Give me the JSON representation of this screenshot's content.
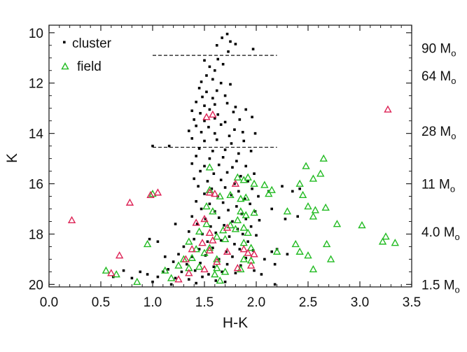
{
  "chart_data": {
    "type": "scatter",
    "title": "",
    "xlabel": "H-K",
    "ylabel": "K",
    "xlim": [
      0.0,
      3.5
    ],
    "ylim": [
      20,
      10
    ],
    "y_inverted": true,
    "xticks": [
      "0.0",
      "0.5",
      "1.0",
      "1.5",
      "2.0",
      "2.5",
      "3.0",
      "3.5"
    ],
    "yticks": [
      "10",
      "12",
      "14",
      "16",
      "18",
      "20"
    ],
    "legend": {
      "position": "top-left",
      "entries": [
        {
          "label": "cluster",
          "marker": "square-dot"
        },
        {
          "label": "field",
          "marker": "triangle"
        }
      ]
    },
    "mass_labels": [
      {
        "K": 10.6,
        "value": "90",
        "unit_main": "M",
        "unit_sub": "o"
      },
      {
        "K": 11.7,
        "value": "64",
        "unit_main": "M",
        "unit_sub": "o"
      },
      {
        "K": 13.9,
        "value": "28",
        "unit_main": "M",
        "unit_sub": "o"
      },
      {
        "K": 16.0,
        "value": "11",
        "unit_main": "M",
        "unit_sub": "o"
      },
      {
        "K": 17.9,
        "value": "4.0",
        "unit_main": "M",
        "unit_sub": "o"
      },
      {
        "K": 20.0,
        "value": "1.5",
        "unit_main": "M",
        "unit_sub": "o"
      }
    ],
    "reference_lines": [
      {
        "K": 10.9,
        "x_range": [
          1.0,
          2.2
        ],
        "style": "dashed"
      },
      {
        "K": 14.55,
        "x_range": [
          1.0,
          2.2
        ],
        "style": "dashed"
      }
    ],
    "colors": {
      "cluster": "#000000",
      "field_green": "#22bb22",
      "field_red": "#dd2255"
    },
    "series": [
      {
        "name": "cluster",
        "marker": "square-dot",
        "points": [
          [
            1.72,
            10.05
          ],
          [
            1.67,
            10.2
          ],
          [
            1.75,
            10.35
          ],
          [
            1.62,
            10.5
          ],
          [
            1.8,
            10.45
          ],
          [
            1.73,
            10.75
          ],
          [
            1.97,
            10.65
          ],
          [
            1.5,
            11.1
          ],
          [
            1.63,
            11.05
          ],
          [
            1.55,
            11.35
          ],
          [
            1.68,
            11.25
          ],
          [
            1.6,
            11.5
          ],
          [
            1.52,
            11.7
          ],
          [
            1.47,
            11.95
          ],
          [
            1.58,
            11.85
          ],
          [
            1.66,
            12.0
          ],
          [
            1.75,
            12.05
          ],
          [
            1.45,
            12.2
          ],
          [
            1.52,
            12.35
          ],
          [
            1.62,
            12.3
          ],
          [
            1.48,
            12.55
          ],
          [
            1.58,
            12.6
          ],
          [
            1.7,
            12.5
          ],
          [
            1.42,
            12.75
          ],
          [
            1.5,
            12.9
          ],
          [
            1.6,
            12.85
          ],
          [
            1.72,
            12.8
          ],
          [
            1.8,
            12.95
          ],
          [
            1.38,
            13.1
          ],
          [
            1.46,
            13.2
          ],
          [
            1.55,
            13.05
          ],
          [
            1.63,
            13.25
          ],
          [
            1.78,
            13.15
          ],
          [
            1.9,
            13.05
          ],
          [
            1.4,
            13.45
          ],
          [
            1.5,
            13.5
          ],
          [
            1.6,
            13.4
          ],
          [
            1.7,
            13.55
          ],
          [
            1.84,
            13.45
          ],
          [
            1.96,
            13.35
          ],
          [
            1.42,
            13.7
          ],
          [
            1.54,
            13.75
          ],
          [
            1.66,
            13.65
          ],
          [
            1.79,
            13.85
          ],
          [
            1.35,
            13.9
          ],
          [
            1.47,
            13.95
          ],
          [
            1.6,
            14.0
          ],
          [
            1.74,
            14.1
          ],
          [
            1.87,
            13.95
          ],
          [
            1.99,
            14.0
          ],
          [
            1.38,
            14.2
          ],
          [
            1.5,
            14.3
          ],
          [
            1.62,
            14.25
          ],
          [
            1.76,
            14.4
          ],
          [
            1.88,
            14.3
          ],
          [
            1.45,
            14.6
          ],
          [
            1.58,
            14.7
          ],
          [
            1.7,
            14.65
          ],
          [
            1.83,
            14.8
          ],
          [
            1.95,
            14.7
          ],
          [
            1.42,
            14.9
          ],
          [
            1.55,
            15.0
          ],
          [
            1.68,
            14.95
          ],
          [
            1.81,
            15.1
          ],
          [
            1.38,
            15.2
          ],
          [
            1.5,
            15.3
          ],
          [
            1.64,
            15.25
          ],
          [
            1.77,
            15.35
          ],
          [
            1.9,
            15.3
          ],
          [
            1.46,
            15.5
          ],
          [
            1.59,
            15.6
          ],
          [
            1.72,
            15.55
          ],
          [
            1.85,
            15.7
          ],
          [
            1.98,
            15.6
          ],
          [
            1.4,
            15.8
          ],
          [
            1.53,
            15.9
          ],
          [
            1.66,
            15.85
          ],
          [
            1.79,
            16.0
          ],
          [
            1.92,
            15.9
          ],
          [
            1.44,
            16.1
          ],
          [
            1.57,
            16.2
          ],
          [
            1.7,
            16.15
          ],
          [
            1.83,
            16.3
          ],
          [
            1.96,
            16.2
          ],
          [
            1.5,
            16.4
          ],
          [
            1.63,
            16.5
          ],
          [
            1.76,
            16.45
          ],
          [
            1.89,
            16.6
          ],
          [
            2.02,
            16.5
          ],
          [
            1.42,
            16.7
          ],
          [
            1.55,
            16.8
          ],
          [
            1.68,
            16.75
          ],
          [
            1.81,
            16.9
          ],
          [
            1.94,
            16.8
          ],
          [
            1.47,
            17.0
          ],
          [
            1.6,
            17.1
          ],
          [
            1.73,
            17.05
          ],
          [
            1.86,
            17.2
          ],
          [
            1.99,
            17.1
          ],
          [
            1.38,
            17.3
          ],
          [
            1.51,
            17.4
          ],
          [
            1.64,
            17.35
          ],
          [
            1.77,
            17.5
          ],
          [
            1.9,
            17.4
          ],
          [
            2.03,
            17.45
          ],
          [
            1.43,
            17.6
          ],
          [
            1.56,
            17.7
          ],
          [
            1.69,
            17.65
          ],
          [
            1.82,
            17.8
          ],
          [
            1.95,
            17.7
          ],
          [
            1.35,
            17.9
          ],
          [
            1.48,
            18.0
          ],
          [
            1.61,
            17.95
          ],
          [
            1.74,
            18.1
          ],
          [
            1.87,
            18.0
          ],
          [
            2.0,
            18.05
          ],
          [
            1.4,
            18.2
          ],
          [
            1.53,
            18.3
          ],
          [
            1.66,
            18.25
          ],
          [
            1.79,
            18.4
          ],
          [
            1.92,
            18.3
          ],
          [
            1.3,
            18.5
          ],
          [
            1.45,
            18.6
          ],
          [
            1.58,
            18.55
          ],
          [
            1.71,
            18.7
          ],
          [
            1.84,
            18.6
          ],
          [
            1.97,
            18.65
          ],
          [
            2.15,
            18.7
          ],
          [
            1.25,
            18.8
          ],
          [
            1.38,
            18.9
          ],
          [
            1.51,
            18.85
          ],
          [
            1.64,
            19.0
          ],
          [
            1.77,
            18.9
          ],
          [
            1.9,
            18.95
          ],
          [
            2.08,
            19.0
          ],
          [
            1.2,
            19.1
          ],
          [
            1.33,
            19.2
          ],
          [
            1.46,
            19.15
          ],
          [
            1.59,
            19.3
          ],
          [
            1.72,
            19.2
          ],
          [
            1.85,
            19.25
          ],
          [
            2.18,
            19.2
          ],
          [
            1.15,
            19.4
          ],
          [
            1.28,
            19.5
          ],
          [
            1.41,
            19.45
          ],
          [
            1.54,
            19.6
          ],
          [
            1.67,
            19.5
          ],
          [
            1.8,
            19.55
          ],
          [
            1.98,
            19.45
          ],
          [
            0.95,
            19.6
          ],
          [
            1.05,
            19.7
          ],
          [
            1.1,
            19.5
          ],
          [
            1.22,
            19.75
          ],
          [
            1.35,
            19.8
          ],
          [
            1.48,
            19.7
          ],
          [
            1.61,
            19.85
          ],
          [
            0.8,
            19.75
          ],
          [
            0.88,
            19.5
          ],
          [
            1.0,
            19.9
          ],
          [
            1.18,
            20.0
          ],
          [
            1.42,
            19.95
          ],
          [
            1.7,
            19.9
          ],
          [
            0.62,
            19.7
          ],
          [
            0.72,
            19.45
          ],
          [
            0.97,
            18.2
          ],
          [
            1.05,
            18.3
          ],
          [
            1.22,
            17.6
          ],
          [
            1.12,
            18.9
          ],
          [
            1.0,
            14.5
          ],
          [
            1.16,
            14.5
          ],
          [
            2.12,
            16.3
          ],
          [
            2.25,
            16.1
          ],
          [
            2.35,
            16.3
          ],
          [
            2.42,
            16.2
          ],
          [
            2.15,
            17.0
          ],
          [
            2.28,
            17.4
          ],
          [
            2.4,
            17.3
          ],
          [
            2.2,
            18.6
          ],
          [
            2.3,
            18.8
          ],
          [
            2.18,
            20.0
          ],
          [
            2.05,
            19.6
          ]
        ]
      },
      {
        "name": "field",
        "marker": "triangle",
        "points": [
          [
            2.65,
            15.0
          ],
          [
            2.48,
            15.3
          ],
          [
            2.62,
            15.6
          ],
          [
            2.42,
            16.0
          ],
          [
            2.55,
            15.8
          ],
          [
            2.45,
            16.45
          ],
          [
            2.3,
            17.1
          ],
          [
            2.5,
            16.9
          ],
          [
            2.57,
            17.05
          ],
          [
            2.67,
            16.95
          ],
          [
            2.55,
            17.3
          ],
          [
            2.78,
            17.6
          ],
          [
            3.02,
            17.65
          ],
          [
            3.25,
            18.1
          ],
          [
            3.22,
            18.3
          ],
          [
            3.34,
            18.35
          ],
          [
            2.38,
            18.4
          ],
          [
            2.42,
            18.7
          ],
          [
            2.5,
            18.85
          ],
          [
            2.68,
            18.4
          ],
          [
            2.72,
            19.0
          ],
          [
            2.55,
            19.4
          ],
          [
            1.82,
            15.75
          ],
          [
            1.88,
            15.85
          ],
          [
            1.92,
            15.75
          ],
          [
            1.98,
            16.0
          ],
          [
            2.08,
            16.05
          ],
          [
            2.12,
            16.4
          ],
          [
            2.15,
            16.25
          ],
          [
            1.85,
            16.6
          ],
          [
            1.9,
            16.55
          ],
          [
            1.75,
            16.45
          ],
          [
            1.65,
            16.5
          ],
          [
            1.55,
            16.25
          ],
          [
            1.52,
            16.9
          ],
          [
            1.58,
            17.1
          ],
          [
            1.85,
            17.1
          ],
          [
            1.9,
            17.25
          ],
          [
            1.82,
            17.45
          ],
          [
            1.75,
            17.65
          ],
          [
            1.68,
            17.85
          ],
          [
            1.8,
            17.8
          ],
          [
            1.88,
            17.75
          ],
          [
            1.92,
            17.95
          ],
          [
            1.62,
            18.1
          ],
          [
            1.7,
            18.2
          ],
          [
            1.88,
            18.35
          ],
          [
            1.95,
            18.55
          ],
          [
            1.55,
            18.55
          ],
          [
            1.5,
            18.75
          ],
          [
            1.42,
            18.6
          ],
          [
            1.38,
            18.95
          ],
          [
            1.3,
            19.0
          ],
          [
            1.25,
            19.25
          ],
          [
            1.35,
            19.35
          ],
          [
            1.45,
            19.3
          ],
          [
            1.62,
            19.35
          ],
          [
            1.88,
            19.0
          ],
          [
            1.95,
            19.05
          ],
          [
            1.85,
            19.4
          ],
          [
            1.7,
            19.5
          ],
          [
            1.6,
            19.6
          ],
          [
            1.18,
            19.75
          ],
          [
            1.12,
            19.45
          ],
          [
            1.65,
            19.85
          ],
          [
            0.85,
            19.9
          ],
          [
            0.55,
            19.45
          ],
          [
            0.65,
            19.6
          ],
          [
            0.95,
            18.4
          ],
          [
            1.55,
            15.35
          ],
          [
            1.52,
            17.6
          ],
          [
            1.45,
            17.9
          ],
          [
            1.35,
            18.3
          ],
          [
            1.98,
            17.15
          ],
          [
            1.0,
            16.4
          ],
          [
            2.2,
            18.7
          ],
          [
            1.62,
            19.0
          ]
        ],
        "red_subset": [
          [
            3.27,
            13.05
          ],
          [
            0.22,
            17.45
          ],
          [
            0.78,
            16.75
          ],
          [
            0.98,
            16.45
          ],
          [
            1.05,
            16.35
          ],
          [
            0.68,
            18.85
          ],
          [
            0.6,
            19.55
          ],
          [
            1.52,
            13.35
          ],
          [
            1.58,
            13.25
          ],
          [
            1.55,
            16.35
          ],
          [
            1.6,
            16.4
          ],
          [
            1.8,
            16.0
          ],
          [
            1.5,
            17.4
          ],
          [
            1.42,
            17.55
          ],
          [
            1.55,
            17.95
          ],
          [
            1.72,
            17.75
          ],
          [
            1.48,
            18.35
          ],
          [
            1.58,
            18.25
          ],
          [
            1.38,
            18.6
          ],
          [
            1.55,
            18.65
          ],
          [
            1.32,
            19.0
          ],
          [
            1.62,
            19.1
          ],
          [
            1.35,
            19.55
          ],
          [
            1.25,
            19.8
          ],
          [
            1.72,
            18.7
          ],
          [
            1.88,
            18.6
          ],
          [
            1.92,
            18.75
          ],
          [
            1.98,
            18.8
          ],
          [
            1.82,
            19.35
          ],
          [
            1.95,
            19.25
          ],
          [
            1.5,
            19.4
          ]
        ]
      }
    ]
  }
}
